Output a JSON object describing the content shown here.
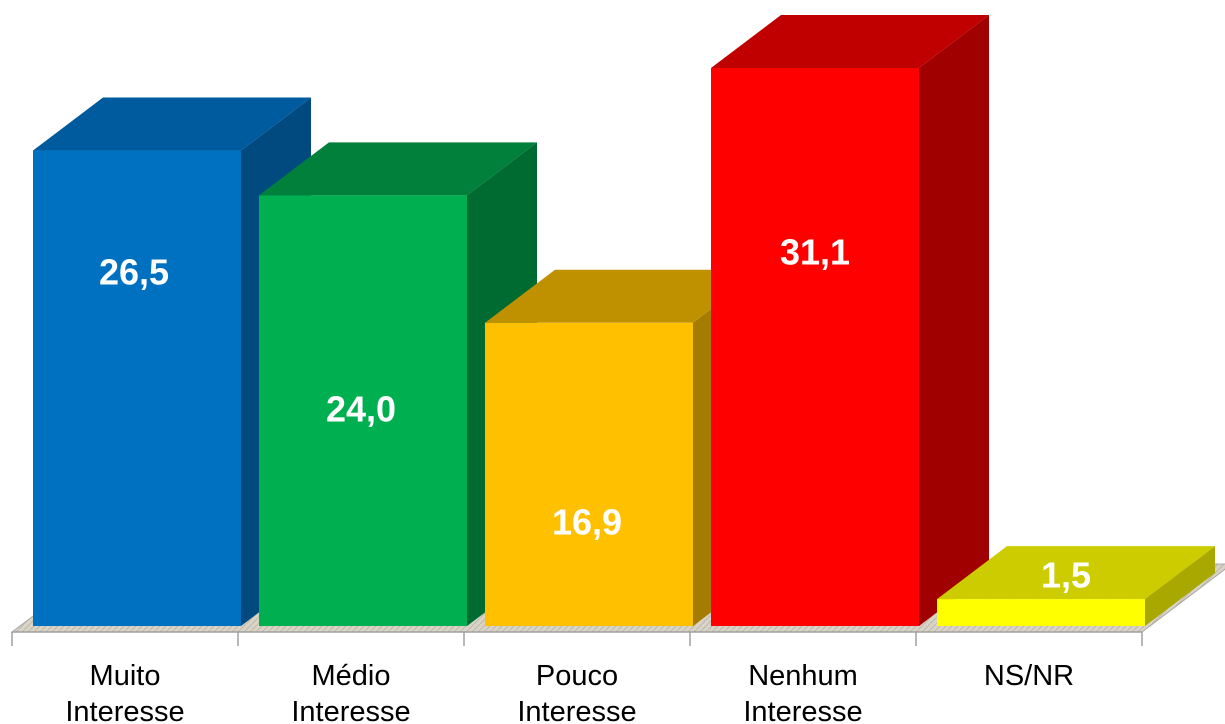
{
  "chart_data": {
    "type": "bar",
    "style": "3d",
    "categories": [
      [
        "Muito",
        "Interesse"
      ],
      [
        "Médio",
        "Interesse"
      ],
      [
        "Pouco",
        "Interesse"
      ],
      [
        "Nenhum",
        "Interesse"
      ],
      [
        "NS/NR"
      ]
    ],
    "values": [
      26.5,
      24.0,
      16.9,
      31.1,
      1.5
    ],
    "value_labels": [
      "26,5",
      "24,0",
      "16,9",
      "31,1",
      "1,5"
    ],
    "colors": {
      "front": [
        "#0070C0",
        "#00B050",
        "#FFC000",
        "#FF0000",
        "#FFFF00"
      ],
      "top": [
        "#005A9E",
        "#00803A",
        "#BF9000",
        "#C00000",
        "#CCCC00"
      ],
      "side": [
        "#004A80",
        "#006B30",
        "#A67C00",
        "#A00000",
        "#A8A800"
      ]
    },
    "title": "",
    "xlabel": "",
    "ylabel": "",
    "ylim": [
      0,
      31.1
    ],
    "grid": false,
    "legend": "none"
  }
}
